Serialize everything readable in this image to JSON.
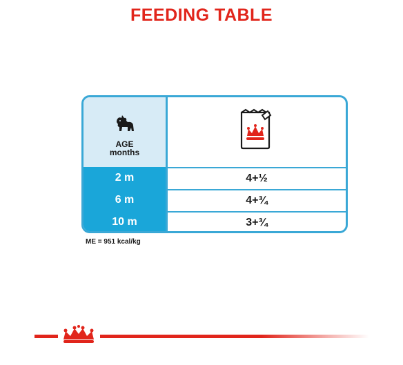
{
  "title": "FEEDING TABLE",
  "table": {
    "age_header": "AGE\nmonths",
    "age_header_line1": "AGE",
    "age_header_line2": "months",
    "product_icon": "royal-canin-pouch-icon",
    "dog_icon": "puppy-icon",
    "rows": [
      {
        "age": "2 m",
        "amount": "4+½"
      },
      {
        "age": "6 m",
        "amount": "4+¾"
      },
      {
        "age": "10 m",
        "amount": "3+¾"
      }
    ]
  },
  "footnote": "ME = 951 kcal/kg",
  "colors": {
    "brand_red": "#e1251b",
    "table_blue": "#1aa6d9",
    "header_light_blue": "#d7ebf6",
    "border_blue": "#3aa8d6"
  },
  "footer_icon": "royal-canin-crown-icon"
}
